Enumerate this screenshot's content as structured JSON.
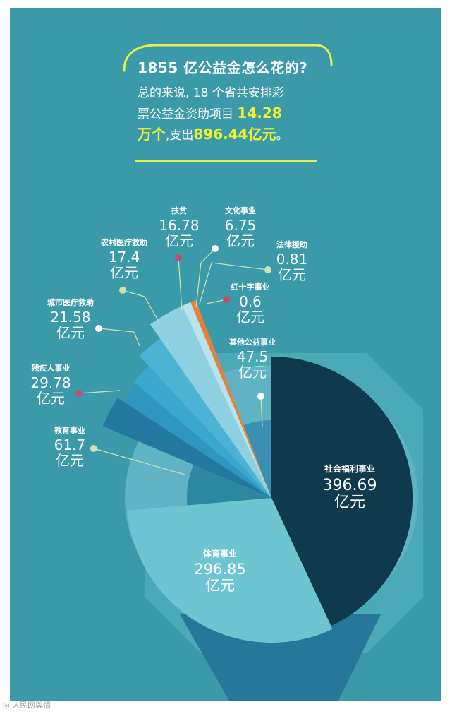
{
  "headline": "1855 亿公益金怎么花的?",
  "intro": {
    "line1": "总的来说, 18 个省共安排彩",
    "line2a": "票公益金资助项目 ",
    "projects": "14.28",
    "line3a": "万个",
    "line3b": ",支出",
    "amount": "896.44亿元",
    "line3c": "。"
  },
  "footer_brand": "人民网舆情",
  "colors": {
    "background": "#3a9aaa",
    "accent_yellow": "#f2f22c",
    "callout_line": "#cfe3b0",
    "dot_red": "#c0506a",
    "dot_yellow": "#cfe3b0",
    "dot_white": "#ffffff"
  },
  "chart_data": {
    "type": "pie",
    "title": "1855 亿公益金怎么花的?",
    "unit": "亿元",
    "slices": [
      {
        "name": "社会福利事业",
        "value": 396.69,
        "value_text": "396.69",
        "unit": "亿元",
        "color": "#0f3a4e"
      },
      {
        "name": "体育事业",
        "value": 296.85,
        "value_text": "296.85",
        "unit": "亿元",
        "color": "#6ec5d2"
      },
      {
        "name": "教育事业",
        "value": 61.7,
        "value_text": "61.7",
        "unit": "亿元",
        "color": "#2b88a0"
      },
      {
        "name": "残疾人事业",
        "value": 29.78,
        "value_text": "29.78",
        "unit": "亿元",
        "color": "#2378a0"
      },
      {
        "name": "城市医疗救助",
        "value": 21.58,
        "value_text": "21.58",
        "unit": "亿元",
        "color": "#2f97bd"
      },
      {
        "name": "农村医疗救助",
        "value": 17.4,
        "value_text": "17.4",
        "unit": "亿元",
        "color": "#3aa8cc"
      },
      {
        "name": "扶贫",
        "value": 16.78,
        "value_text": "16.78",
        "unit": "亿元",
        "color": "#4cb3d4"
      },
      {
        "name": "文化事业",
        "value": 6.75,
        "value_text": "6.75",
        "unit": "亿元",
        "color": "#8fd0e0"
      },
      {
        "name": "法律援助",
        "value": 0.81,
        "value_text": "0.81",
        "unit": "亿元",
        "color": "#b8e2ec"
      },
      {
        "name": "红十字事业",
        "value": 0.6,
        "value_text": "0.6",
        "unit": "亿元",
        "color": "#e8803a"
      },
      {
        "name": "其他公益事业",
        "value": 47.5,
        "value_text": "47.5",
        "unit": "亿元",
        "color": "#3a8fb3"
      }
    ]
  }
}
